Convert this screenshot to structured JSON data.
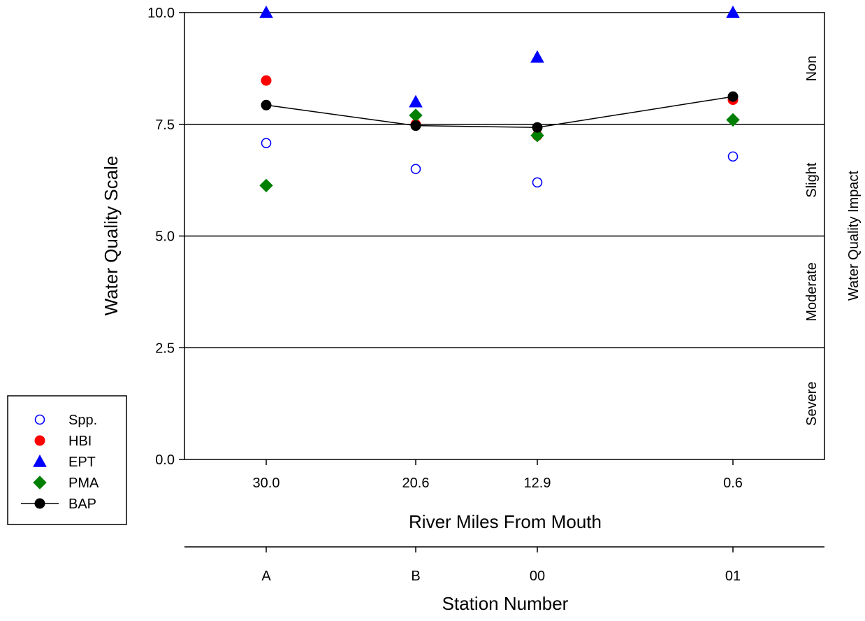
{
  "chart_data": {
    "type": "scatter",
    "ylabel": "Water Quality Scale",
    "xlabel": "River Miles From Mouth",
    "x2label": "Station Number",
    "right_label": "Water Quality Impact",
    "ylim": [
      0,
      10
    ],
    "y_ticks": [
      "0.0",
      "2.5",
      "5.0",
      "7.5",
      "10.0"
    ],
    "y_tick_values": [
      0,
      2.5,
      5,
      7.5,
      10
    ],
    "categories": [
      "30.0",
      "20.6",
      "12.9",
      "0.6"
    ],
    "stations": [
      "A",
      "B",
      "00",
      "01"
    ],
    "thresholds": [
      2.5,
      5,
      7.5
    ],
    "zones": [
      {
        "label": "Non",
        "from": 7.5,
        "to": 10
      },
      {
        "label": "Slight",
        "from": 5,
        "to": 7.5
      },
      {
        "label": "Moderate",
        "from": 2.5,
        "to": 5
      },
      {
        "label": "Severe",
        "from": 0,
        "to": 2.5
      }
    ],
    "series": [
      {
        "name": "Spp.",
        "marker": "open-circle",
        "color": "#0000ff",
        "values": [
          7.08,
          6.5,
          6.2,
          6.78
        ]
      },
      {
        "name": "HBI",
        "marker": "circle",
        "color": "#ff0000",
        "values": [
          8.48,
          7.5,
          7.25,
          8.05
        ]
      },
      {
        "name": "EPT",
        "marker": "triangle",
        "color": "#0000ff",
        "values": [
          10.0,
          8.0,
          9.0,
          10.0
        ]
      },
      {
        "name": "PMA",
        "marker": "diamond",
        "color": "#008000",
        "values": [
          6.13,
          7.7,
          7.25,
          7.6
        ]
      },
      {
        "name": "BAP",
        "marker": "circle-line",
        "color": "#000000",
        "values": [
          7.93,
          7.47,
          7.43,
          8.12
        ]
      }
    ],
    "legend_position": "bottom-left",
    "grid": false
  }
}
